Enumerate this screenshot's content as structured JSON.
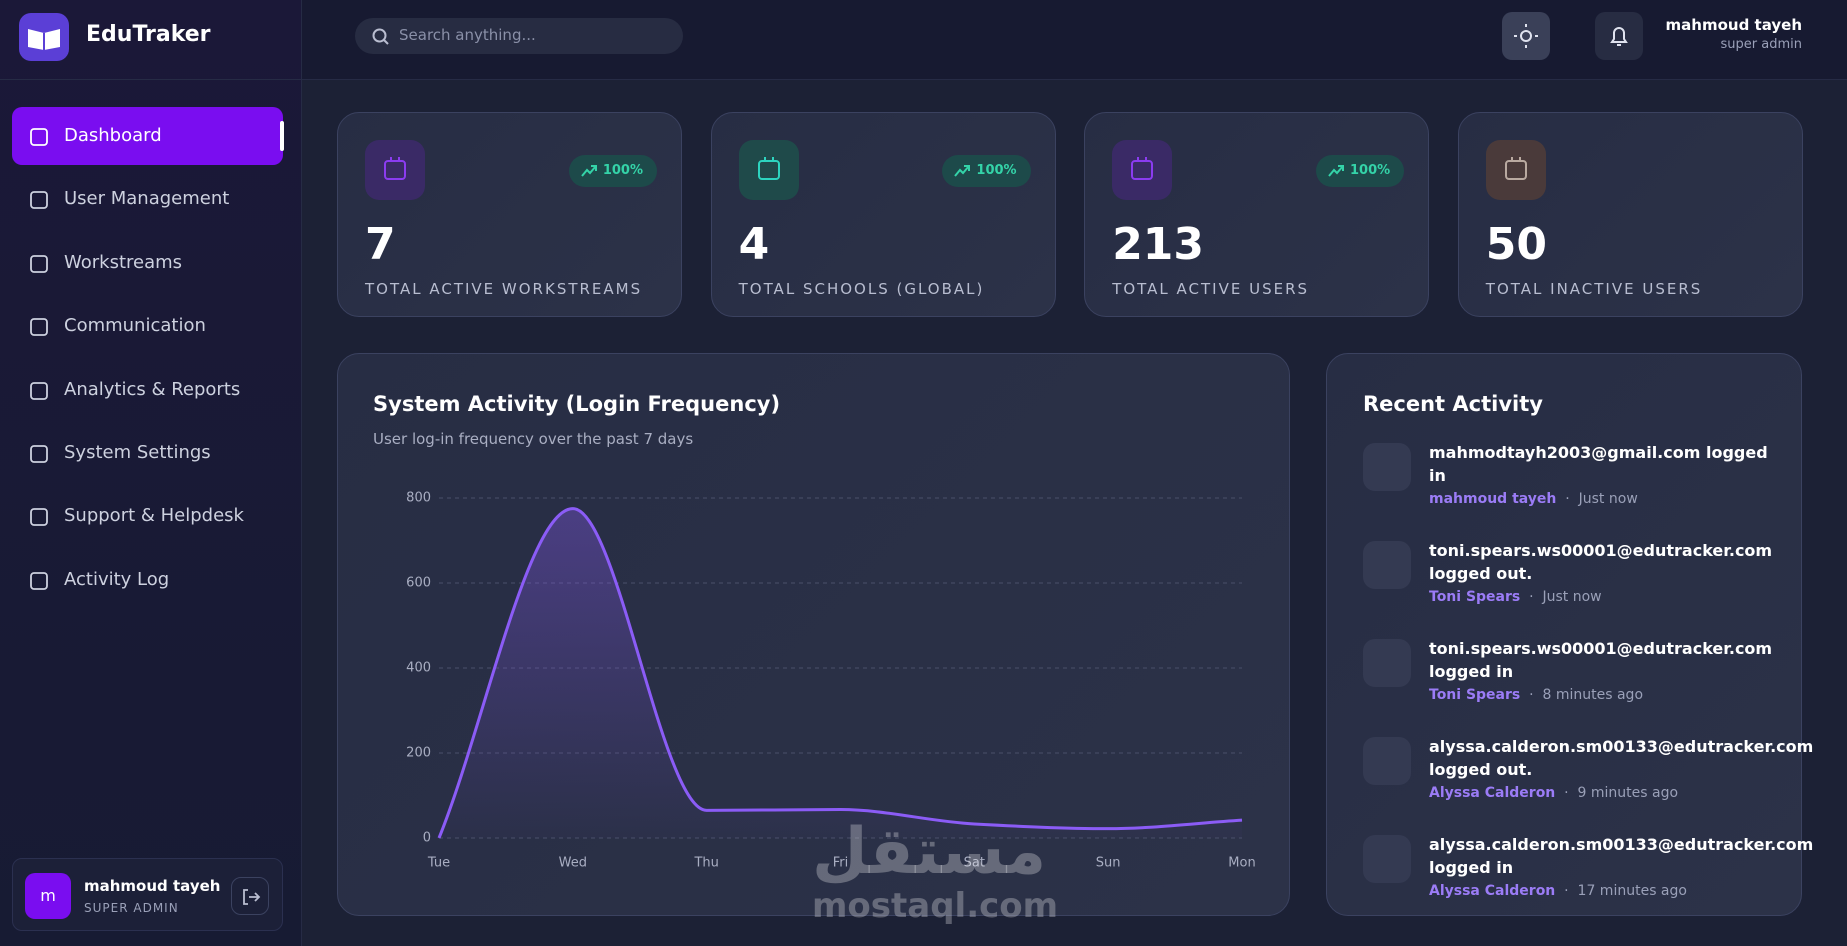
{
  "brand": "EduTraker",
  "search_placeholder": "Search anything...",
  "header_user": {
    "name": "mahmoud tayeh",
    "role": "super admin"
  },
  "nav": [
    "Dashboard",
    "User Management",
    "Workstreams",
    "Communication",
    "Analytics & Reports",
    "System Settings",
    "Support & Helpdesk",
    "Activity Log"
  ],
  "sidebar_user": {
    "initial": "m",
    "name": "mahmoud tayeh",
    "role": "SUPER ADMIN"
  },
  "stats": [
    {
      "value": 7,
      "label": "TOTAL ACTIVE WORKSTREAMS",
      "badge": "100%"
    },
    {
      "value": 4,
      "label": "TOTAL SCHOOLS (GLOBAL)",
      "badge": "100%"
    },
    {
      "value": 213,
      "label": "TOTAL ACTIVE USERS",
      "badge": "100%"
    },
    {
      "value": 50,
      "label": "TOTAL INACTIVE USERS"
    }
  ],
  "chart_data": {
    "type": "line",
    "title": "System Activity (Login Frequency)",
    "subtitle": "User log-in frequency over the past 7 days",
    "categories": [
      "Tue",
      "Wed",
      "Thu",
      "Fri",
      "Sat",
      "Sun",
      "Mon"
    ],
    "values": [
      0,
      775,
      65,
      67,
      33,
      22,
      42
    ],
    "color": "#8b5cf6",
    "ylim": [
      0,
      800
    ],
    "yticks": [
      0,
      200,
      400,
      600,
      800
    ],
    "grid": true
  },
  "recent_activity": {
    "title": "Recent Activity",
    "items": [
      {
        "text": "mahmodtayh2003@gmail.com logged in",
        "user": "mahmoud tayeh",
        "time": "Just now"
      },
      {
        "text": "toni.spears.ws00001@edutracker.com logged out.",
        "user": "Toni Spears",
        "time": "Just now"
      },
      {
        "text": "toni.spears.ws00001@edutracker.com logged in",
        "user": "Toni Spears",
        "time": "8 minutes ago"
      },
      {
        "text": "alyssa.calderon.sm00133@edutracker.com logged out.",
        "user": "Alyssa Calderon",
        "time": "9 minutes ago"
      },
      {
        "text": "alyssa.calderon.sm00133@edutracker.com logged in",
        "user": "Alyssa Calderon",
        "time": "17 minutes ago"
      }
    ]
  },
  "watermark": {
    "arabic": "مستقل",
    "latin": "mostaql.com"
  }
}
